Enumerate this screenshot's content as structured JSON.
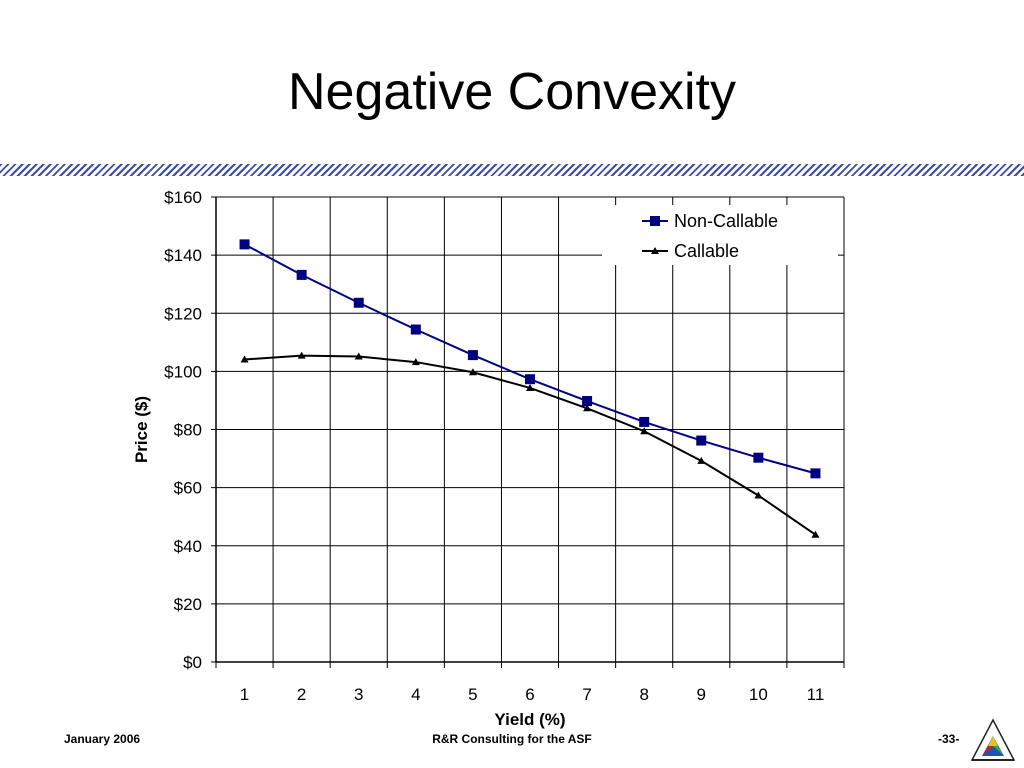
{
  "slide": {
    "title": "Negative Convexity"
  },
  "footer": {
    "date": "January 2006",
    "company": "R&R Consulting for the ASF",
    "page": "-33-"
  },
  "colors": {
    "non_callable": "#000080",
    "callable": "#000000",
    "divider": "#3a4ea8"
  },
  "chart_data": {
    "type": "line",
    "xlabel": "Yield (%)",
    "ylabel": "Price ($)",
    "categories": [
      1,
      2,
      3,
      4,
      5,
      6,
      7,
      8,
      9,
      10,
      11
    ],
    "ylim": [
      0,
      160
    ],
    "yticks": [
      "$0",
      "$20",
      "$40",
      "$60",
      "$80",
      "$100",
      "$120",
      "$140",
      "$160"
    ],
    "ytick_values": [
      0,
      20,
      40,
      60,
      80,
      100,
      120,
      140,
      160
    ],
    "grid": true,
    "legend": "top-right",
    "series": [
      {
        "name": "Non-Callable",
        "marker": "square",
        "values": [
          143.7,
          133.2,
          123.6,
          114.4,
          105.6,
          97.3,
          89.8,
          82.6,
          76.2,
          70.3,
          64.9
        ]
      },
      {
        "name": "Callable",
        "marker": "triangle",
        "values": [
          104.1,
          105.4,
          105.1,
          103.2,
          99.7,
          94.3,
          87.3,
          79.4,
          69.2,
          57.3,
          43.8
        ]
      }
    ]
  }
}
